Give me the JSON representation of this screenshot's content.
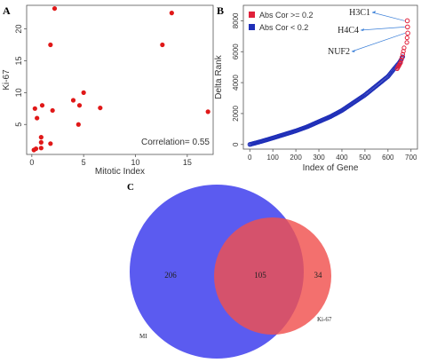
{
  "panel_labels": {
    "a": "A",
    "b": "B",
    "c": "C"
  },
  "chart_data": [
    {
      "panel": "A",
      "type": "scatter",
      "xlabel": "Mitotic Index",
      "ylabel": "Ki-67",
      "xlim": [
        -0.5,
        17.5
      ],
      "ylim": [
        0.3,
        23.7
      ],
      "xticks": [
        0,
        5,
        10,
        15
      ],
      "yticks": [
        5,
        10,
        15,
        20
      ],
      "annotation": "Correlation= 0.55",
      "color": "#e01818",
      "grid": false,
      "points": [
        {
          "x": 0.2,
          "y": 1.0
        },
        {
          "x": 0.4,
          "y": 1.2
        },
        {
          "x": 0.9,
          "y": 1.3
        },
        {
          "x": 0.9,
          "y": 2.2
        },
        {
          "x": 1.8,
          "y": 2.0
        },
        {
          "x": 0.9,
          "y": 3.0
        },
        {
          "x": 0.5,
          "y": 6.0
        },
        {
          "x": 0.3,
          "y": 7.5
        },
        {
          "x": 1.0,
          "y": 8.0
        },
        {
          "x": 2.0,
          "y": 7.2
        },
        {
          "x": 4.5,
          "y": 5.0
        },
        {
          "x": 4.0,
          "y": 8.8
        },
        {
          "x": 4.6,
          "y": 8.0
        },
        {
          "x": 5.0,
          "y": 10.0
        },
        {
          "x": 6.6,
          "y": 7.6
        },
        {
          "x": 1.8,
          "y": 17.5
        },
        {
          "x": 2.2,
          "y": 23.2
        },
        {
          "x": 12.6,
          "y": 17.5
        },
        {
          "x": 13.5,
          "y": 22.5
        },
        {
          "x": 17.0,
          "y": 7.0
        }
      ]
    },
    {
      "panel": "B",
      "type": "scatter",
      "xlabel": "Index of Gene",
      "ylabel": "Delta Rank",
      "xlim": [
        -28,
        728
      ],
      "ylim": [
        -300,
        9000
      ],
      "xticks": [
        0,
        100,
        200,
        300,
        400,
        500,
        600,
        700
      ],
      "yticks": [
        0,
        2000,
        4000,
        6000,
        8000
      ],
      "grid": false,
      "legend": {
        "position": "top-left",
        "entries": [
          {
            "label": "Abs Cor >= 0.2",
            "color": "#e0203a"
          },
          {
            "label": "Abs Cor < 0.2",
            "color": "#1f2fb8"
          }
        ]
      },
      "series": [
        {
          "name": "Abs Cor < 0.2",
          "color": "#1f2fb8",
          "curve": [
            [
              0,
              0
            ],
            [
              50,
              200
            ],
            [
              100,
              420
            ],
            [
              150,
              650
            ],
            [
              200,
              880
            ],
            [
              250,
              1150
            ],
            [
              300,
              1480
            ],
            [
              350,
              1800
            ],
            [
              400,
              2200
            ],
            [
              450,
              2700
            ],
            [
              500,
              3200
            ],
            [
              550,
              3800
            ],
            [
              600,
              4400
            ],
            [
              630,
              4950
            ],
            [
              650,
              5300
            ],
            [
              665,
              5700
            ]
          ]
        },
        {
          "name": "Abs Cor >= 0.2",
          "color": "#e0203a",
          "curve": [
            [
              640,
              4900
            ],
            [
              655,
              5300
            ],
            [
              662,
              5700
            ],
            [
              668,
              6100
            ],
            [
              672,
              6400
            ]
          ],
          "top_points": [
            {
              "x": 684,
              "y": 8000,
              "label": "H3C1"
            },
            {
              "x": 685,
              "y": 7600,
              "label": "H4C4"
            },
            {
              "x": 686,
              "y": 7200,
              "label": "NUF2"
            }
          ],
          "extra_points": [
            [
              683,
              6900
            ],
            [
              682,
              6600
            ]
          ]
        }
      ]
    },
    {
      "panel": "C",
      "type": "venn",
      "sets": [
        {
          "name": "MI",
          "color": "#5b5bf0",
          "only": 206
        },
        {
          "name": "Ki-67",
          "color": "#f0504e",
          "only": 34
        }
      ],
      "intersection": 105,
      "intersection_color": "#c0456e"
    }
  ]
}
